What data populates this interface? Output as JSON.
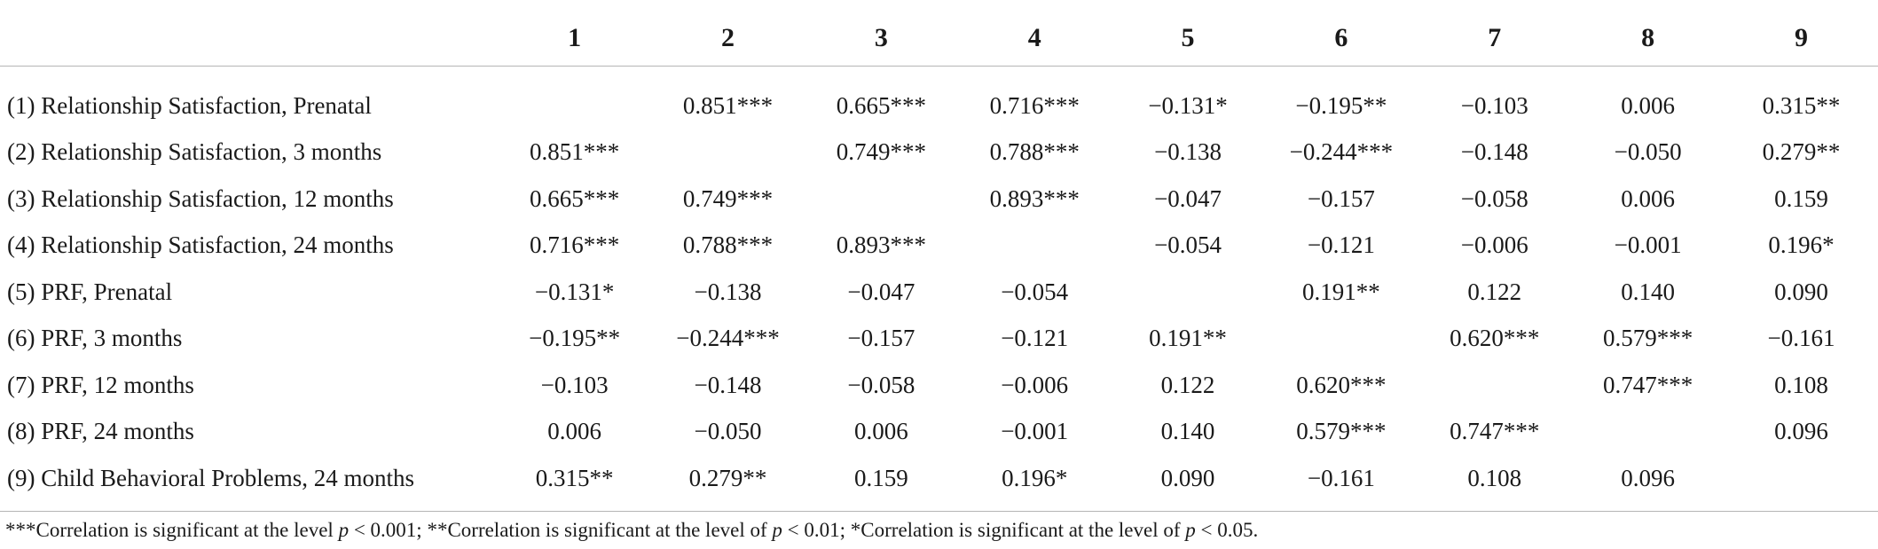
{
  "table": {
    "columns": [
      "",
      "1",
      "2",
      "3",
      "4",
      "5",
      "6",
      "7",
      "8",
      "9"
    ],
    "rows": [
      {
        "label": "(1) Relationship Satisfaction, Prenatal",
        "cells": [
          "",
          "0.851***",
          "0.665***",
          "0.716***",
          "−0.131*",
          "−0.195**",
          "−0.103",
          "0.006",
          "0.315**"
        ]
      },
      {
        "label": "(2) Relationship Satisfaction, 3 months",
        "cells": [
          "0.851***",
          "",
          "0.749***",
          "0.788***",
          "−0.138",
          "−0.244***",
          "−0.148",
          "−0.050",
          "0.279**"
        ]
      },
      {
        "label": "(3) Relationship Satisfaction, 12 months",
        "cells": [
          "0.665***",
          "0.749***",
          "",
          "0.893***",
          "−0.047",
          "−0.157",
          "−0.058",
          "0.006",
          "0.159"
        ]
      },
      {
        "label": "(4) Relationship Satisfaction, 24 months",
        "cells": [
          "0.716***",
          "0.788***",
          "0.893***",
          "",
          "−0.054",
          "−0.121",
          "−0.006",
          "−0.001",
          "0.196*"
        ]
      },
      {
        "label": "(5) PRF, Prenatal",
        "cells": [
          "−0.131*",
          "−0.138",
          "−0.047",
          "−0.054",
          "",
          "0.191**",
          "0.122",
          "0.140",
          "0.090"
        ]
      },
      {
        "label": "(6) PRF, 3 months",
        "cells": [
          "−0.195**",
          "−0.244***",
          "−0.157",
          "−0.121",
          "0.191**",
          "",
          "0.620***",
          "0.579***",
          "−0.161"
        ]
      },
      {
        "label": "(7) PRF, 12 months",
        "cells": [
          "−0.103",
          "−0.148",
          "−0.058",
          "−0.006",
          "0.122",
          "0.620***",
          "",
          "0.747***",
          "0.108"
        ]
      },
      {
        "label": "(8) PRF, 24 months",
        "cells": [
          "0.006",
          "−0.050",
          "0.006",
          "−0.001",
          "0.140",
          "0.579***",
          "0.747***",
          "",
          "0.096"
        ]
      },
      {
        "label": "(9) Child Behavioral Problems, 24 months",
        "cells": [
          "0.315**",
          "0.279**",
          "0.159",
          "0.196*",
          "0.090",
          "−0.161",
          "0.108",
          "0.096",
          ""
        ]
      }
    ]
  },
  "footnote": {
    "part1": "***Correlation is significant at the level ",
    "p1": "p",
    "part2": " < 0.001; **Correlation is significant at the level of ",
    "p2": "p",
    "part3": " < 0.01; *Correlation is significant at the level of ",
    "p3": "p",
    "part4": " < 0.05."
  }
}
